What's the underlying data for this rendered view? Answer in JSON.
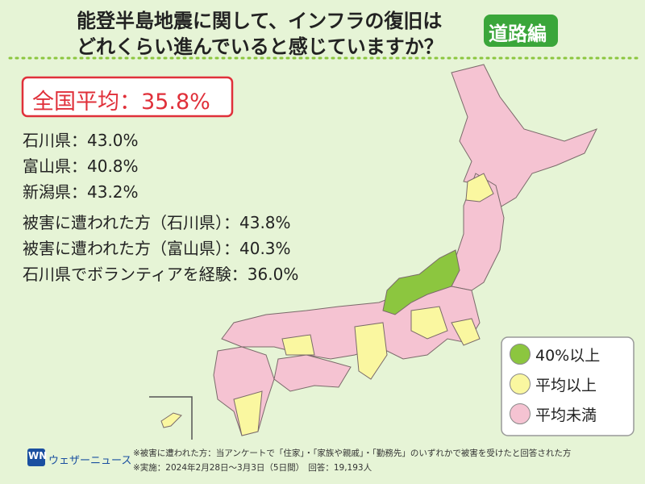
{
  "header": {
    "title_line1": "能登半島地震に関して、インフラの復旧は",
    "title_line2": "どれくらい進んでいると感じていますか？",
    "badge": "道路編"
  },
  "average": "全国平均：35.8%",
  "prefectures": [
    "石川県：43.0%",
    "富山県：40.8%",
    "新潟県：43.2%"
  ],
  "groups": [
    "被害に遭われた方（石川県）：43.8%",
    "被害に遭われた方（富山県）：40.3%",
    "石川県でボランティアを経験：36.0%"
  ],
  "legend": [
    {
      "label": "40%以上",
      "color": "#8cc63f"
    },
    {
      "label": "平均以上",
      "color": "#faf7a0"
    },
    {
      "label": "平均未満",
      "color": "#f5c3d2"
    }
  ],
  "footer": {
    "logo_mark": "WN",
    "logo_text": "ウェザーニュース",
    "notes": [
      "※被害に遭われた方：当アンケートで「住家」・「家族や親戚」・「勤務先」のいずれかで被害を受けたと回答された方",
      "※実施：2024年2月28日～3月3日（5日間）　回答：19,193人"
    ]
  }
}
